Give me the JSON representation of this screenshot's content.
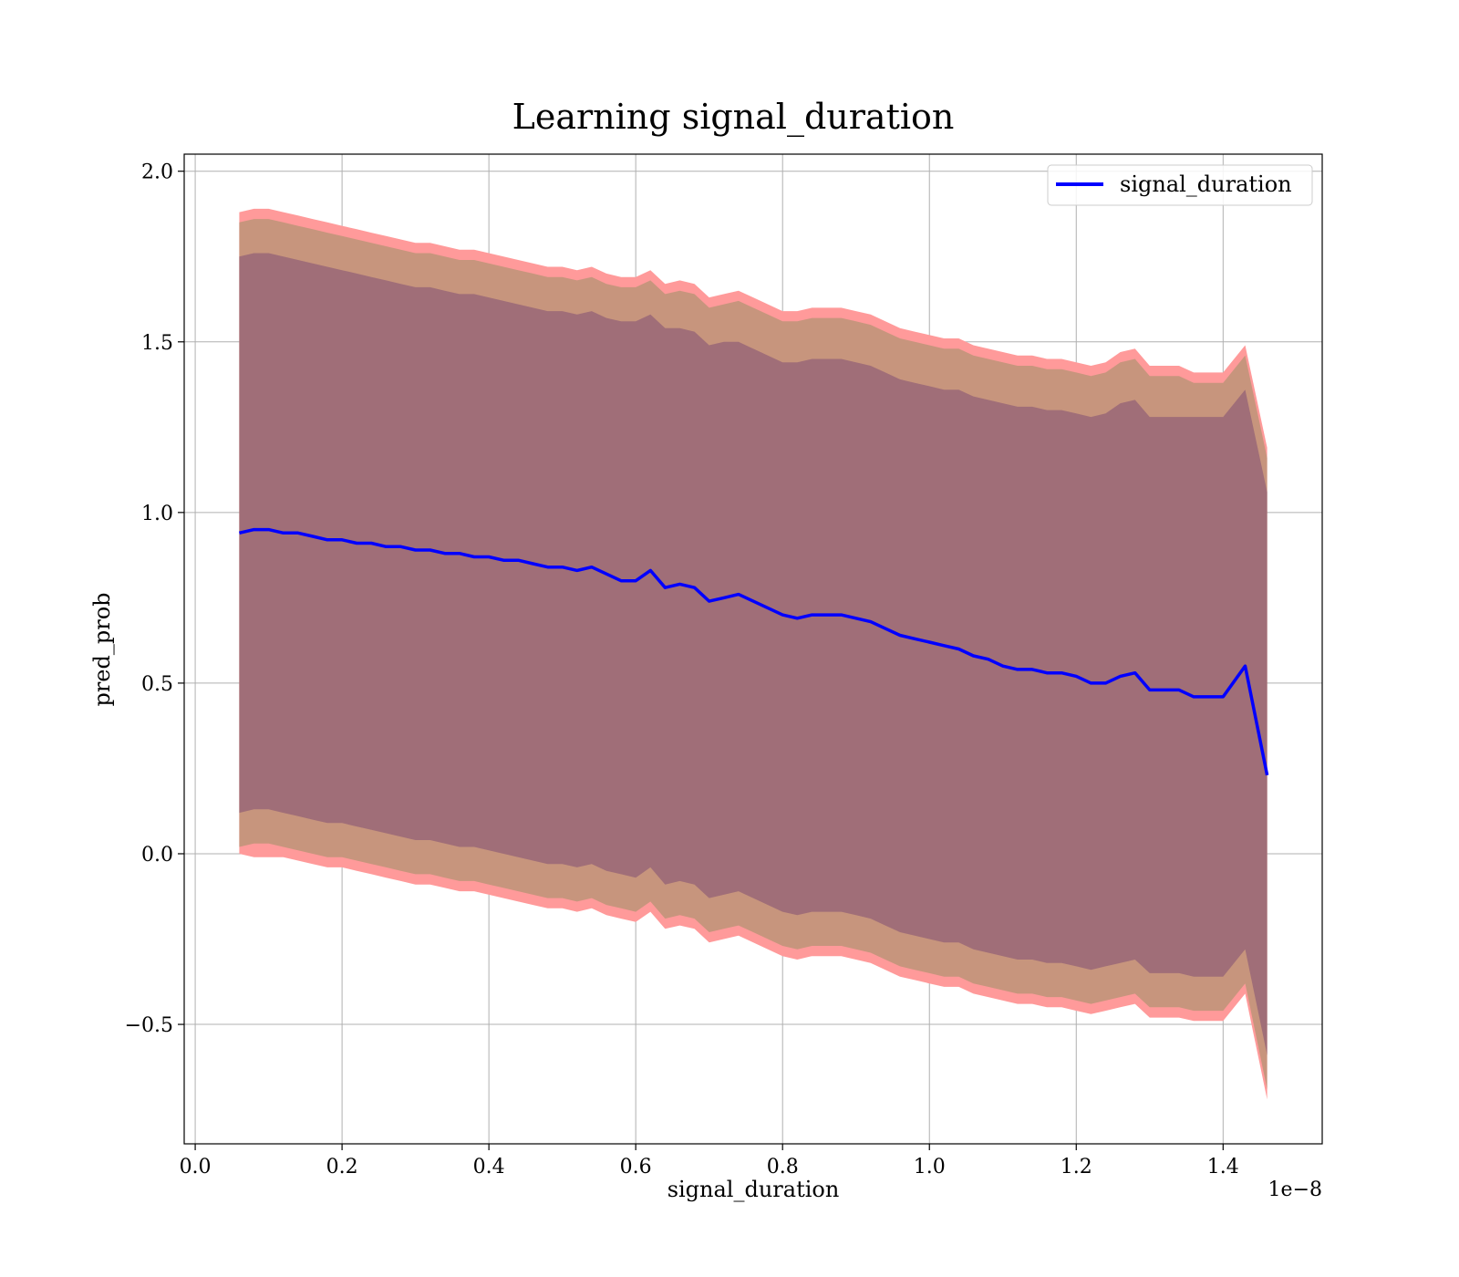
{
  "chart_data": {
    "type": "line",
    "title": "Learning signal_duration",
    "xlabel": "signal_duration",
    "ylabel": "pred_prob",
    "x_offset_label": "1e−8",
    "xlim": [
      -0.015,
      1.535
    ],
    "ylim": [
      -0.85,
      2.05
    ],
    "grid": true,
    "legend_position": "upper right",
    "x_ticks": [
      0.0,
      0.2,
      0.4,
      0.6,
      0.8,
      1.0,
      1.2,
      1.4
    ],
    "x_tick_labels": [
      "0.0",
      "0.2",
      "0.4",
      "0.6",
      "0.8",
      "1.0",
      "1.2",
      "1.4"
    ],
    "y_ticks": [
      -0.5,
      0.0,
      0.5,
      1.0,
      1.5,
      2.0
    ],
    "y_tick_labels": [
      "−0.5",
      "0.0",
      "0.5",
      "1.0",
      "1.5",
      "2.0"
    ],
    "series": [
      {
        "name": "signal_duration",
        "color": "#0000ff",
        "x": [
          0.06,
          0.08,
          0.1,
          0.12,
          0.14,
          0.16,
          0.18,
          0.2,
          0.22,
          0.24,
          0.26,
          0.28,
          0.3,
          0.32,
          0.34,
          0.36,
          0.38,
          0.4,
          0.42,
          0.44,
          0.46,
          0.48,
          0.5,
          0.52,
          0.54,
          0.56,
          0.58,
          0.6,
          0.62,
          0.64,
          0.66,
          0.68,
          0.7,
          0.72,
          0.74,
          0.76,
          0.78,
          0.8,
          0.82,
          0.84,
          0.86,
          0.88,
          0.9,
          0.92,
          0.94,
          0.96,
          0.98,
          1.0,
          1.02,
          1.04,
          1.06,
          1.08,
          1.1,
          1.12,
          1.14,
          1.16,
          1.18,
          1.2,
          1.22,
          1.24,
          1.26,
          1.28,
          1.3,
          1.32,
          1.34,
          1.36,
          1.38,
          1.4,
          1.43,
          1.46
        ],
        "values": [
          0.94,
          0.95,
          0.95,
          0.94,
          0.94,
          0.93,
          0.92,
          0.92,
          0.91,
          0.91,
          0.9,
          0.9,
          0.89,
          0.89,
          0.88,
          0.88,
          0.87,
          0.87,
          0.86,
          0.86,
          0.85,
          0.84,
          0.84,
          0.83,
          0.84,
          0.82,
          0.8,
          0.8,
          0.83,
          0.78,
          0.79,
          0.78,
          0.74,
          0.75,
          0.76,
          0.74,
          0.72,
          0.7,
          0.69,
          0.7,
          0.7,
          0.7,
          0.69,
          0.68,
          0.66,
          0.64,
          0.63,
          0.62,
          0.61,
          0.6,
          0.58,
          0.57,
          0.55,
          0.54,
          0.54,
          0.53,
          0.53,
          0.52,
          0.5,
          0.5,
          0.52,
          0.53,
          0.48,
          0.48,
          0.48,
          0.46,
          0.46,
          0.46,
          0.55,
          0.23
        ],
        "band_outer_upper": [
          1.88,
          1.89,
          1.89,
          1.88,
          1.87,
          1.86,
          1.85,
          1.84,
          1.83,
          1.82,
          1.81,
          1.8,
          1.79,
          1.79,
          1.78,
          1.77,
          1.77,
          1.76,
          1.75,
          1.74,
          1.73,
          1.72,
          1.72,
          1.71,
          1.72,
          1.7,
          1.69,
          1.69,
          1.71,
          1.67,
          1.68,
          1.67,
          1.63,
          1.64,
          1.65,
          1.63,
          1.61,
          1.59,
          1.59,
          1.6,
          1.6,
          1.6,
          1.59,
          1.58,
          1.56,
          1.54,
          1.53,
          1.52,
          1.51,
          1.51,
          1.49,
          1.48,
          1.47,
          1.46,
          1.46,
          1.45,
          1.45,
          1.44,
          1.43,
          1.44,
          1.47,
          1.48,
          1.43,
          1.43,
          1.43,
          1.41,
          1.41,
          1.41,
          1.49,
          1.19
        ],
        "band_outer_lower": [
          0.0,
          -0.01,
          -0.01,
          -0.01,
          -0.02,
          -0.03,
          -0.04,
          -0.04,
          -0.05,
          -0.06,
          -0.07,
          -0.08,
          -0.09,
          -0.09,
          -0.1,
          -0.11,
          -0.11,
          -0.12,
          -0.13,
          -0.14,
          -0.15,
          -0.16,
          -0.16,
          -0.17,
          -0.16,
          -0.18,
          -0.19,
          -0.2,
          -0.17,
          -0.22,
          -0.21,
          -0.22,
          -0.26,
          -0.25,
          -0.24,
          -0.26,
          -0.28,
          -0.3,
          -0.31,
          -0.3,
          -0.3,
          -0.3,
          -0.31,
          -0.32,
          -0.34,
          -0.36,
          -0.37,
          -0.38,
          -0.39,
          -0.39,
          -0.41,
          -0.42,
          -0.43,
          -0.44,
          -0.44,
          -0.45,
          -0.45,
          -0.46,
          -0.47,
          -0.46,
          -0.45,
          -0.44,
          -0.48,
          -0.48,
          -0.48,
          -0.49,
          -0.49,
          -0.49,
          -0.41,
          -0.72
        ],
        "band_mid_upper": [
          1.85,
          1.86,
          1.86,
          1.85,
          1.84,
          1.83,
          1.82,
          1.81,
          1.8,
          1.79,
          1.78,
          1.77,
          1.76,
          1.76,
          1.75,
          1.74,
          1.74,
          1.73,
          1.72,
          1.71,
          1.7,
          1.69,
          1.69,
          1.68,
          1.69,
          1.67,
          1.66,
          1.66,
          1.68,
          1.64,
          1.65,
          1.64,
          1.6,
          1.61,
          1.62,
          1.6,
          1.58,
          1.56,
          1.56,
          1.57,
          1.57,
          1.57,
          1.56,
          1.55,
          1.53,
          1.51,
          1.5,
          1.49,
          1.48,
          1.48,
          1.46,
          1.45,
          1.44,
          1.43,
          1.43,
          1.42,
          1.42,
          1.41,
          1.4,
          1.41,
          1.44,
          1.45,
          1.4,
          1.4,
          1.4,
          1.38,
          1.38,
          1.38,
          1.46,
          1.16
        ],
        "band_mid_lower": [
          0.02,
          0.03,
          0.03,
          0.02,
          0.01,
          0.0,
          -0.01,
          -0.01,
          -0.02,
          -0.03,
          -0.04,
          -0.05,
          -0.06,
          -0.06,
          -0.07,
          -0.08,
          -0.08,
          -0.09,
          -0.1,
          -0.11,
          -0.12,
          -0.13,
          -0.13,
          -0.14,
          -0.13,
          -0.15,
          -0.16,
          -0.17,
          -0.14,
          -0.19,
          -0.18,
          -0.19,
          -0.23,
          -0.22,
          -0.21,
          -0.23,
          -0.25,
          -0.27,
          -0.28,
          -0.27,
          -0.27,
          -0.27,
          -0.28,
          -0.29,
          -0.31,
          -0.33,
          -0.34,
          -0.35,
          -0.36,
          -0.36,
          -0.38,
          -0.39,
          -0.4,
          -0.41,
          -0.41,
          -0.42,
          -0.42,
          -0.43,
          -0.44,
          -0.43,
          -0.42,
          -0.41,
          -0.45,
          -0.45,
          -0.45,
          -0.46,
          -0.46,
          -0.46,
          -0.38,
          -0.69
        ],
        "band_inner_upper": [
          1.75,
          1.76,
          1.76,
          1.75,
          1.74,
          1.73,
          1.72,
          1.71,
          1.7,
          1.69,
          1.68,
          1.67,
          1.66,
          1.66,
          1.65,
          1.64,
          1.64,
          1.63,
          1.62,
          1.61,
          1.6,
          1.59,
          1.59,
          1.58,
          1.59,
          1.57,
          1.56,
          1.56,
          1.58,
          1.54,
          1.54,
          1.53,
          1.49,
          1.5,
          1.5,
          1.48,
          1.46,
          1.44,
          1.44,
          1.45,
          1.45,
          1.45,
          1.44,
          1.43,
          1.41,
          1.39,
          1.38,
          1.37,
          1.36,
          1.36,
          1.34,
          1.33,
          1.32,
          1.31,
          1.31,
          1.3,
          1.3,
          1.29,
          1.28,
          1.29,
          1.32,
          1.33,
          1.28,
          1.28,
          1.28,
          1.28,
          1.28,
          1.28,
          1.36,
          1.06
        ],
        "band_inner_lower": [
          0.12,
          0.13,
          0.13,
          0.12,
          0.11,
          0.1,
          0.09,
          0.09,
          0.08,
          0.07,
          0.06,
          0.05,
          0.04,
          0.04,
          0.03,
          0.02,
          0.02,
          0.01,
          0.0,
          -0.01,
          -0.02,
          -0.03,
          -0.03,
          -0.04,
          -0.03,
          -0.05,
          -0.06,
          -0.07,
          -0.04,
          -0.09,
          -0.08,
          -0.09,
          -0.13,
          -0.12,
          -0.11,
          -0.13,
          -0.15,
          -0.17,
          -0.18,
          -0.17,
          -0.17,
          -0.17,
          -0.18,
          -0.19,
          -0.21,
          -0.23,
          -0.24,
          -0.25,
          -0.26,
          -0.26,
          -0.28,
          -0.29,
          -0.3,
          -0.31,
          -0.31,
          -0.32,
          -0.32,
          -0.33,
          -0.34,
          -0.33,
          -0.32,
          -0.31,
          -0.35,
          -0.35,
          -0.35,
          -0.36,
          -0.36,
          -0.36,
          -0.28,
          -0.59
        ]
      }
    ],
    "band_colors": {
      "outer": "#ff9a9a",
      "mid": "#c7957d",
      "inner": "#a06e78"
    }
  }
}
